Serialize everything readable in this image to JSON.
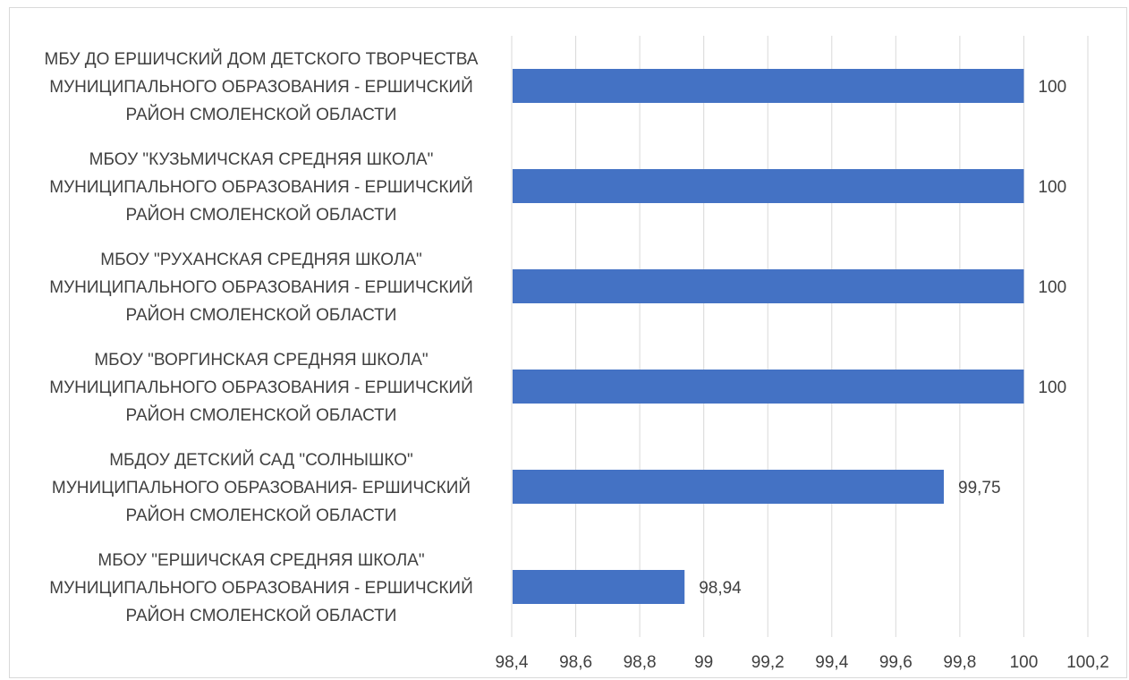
{
  "chart_data": {
    "type": "bar",
    "orientation": "horizontal",
    "categories": [
      [
        "МБУ ДО ЕРШИЧСКИЙ ДОМ ДЕТСКОГО ТВОРЧЕСТВА",
        "МУНИЦИПАЛЬНОГО ОБРАЗОВАНИЯ - ЕРШИЧСКИЙ",
        "РАЙОН СМОЛЕНСКОЙ ОБЛАСТИ"
      ],
      [
        "МБОУ \"КУЗЬМИЧСКАЯ СРЕДНЯЯ ШКОЛА\"",
        "МУНИЦИПАЛЬНОГО ОБРАЗОВАНИЯ - ЕРШИЧСКИЙ",
        "РАЙОН СМОЛЕНСКОЙ ОБЛАСТИ"
      ],
      [
        "МБОУ \"РУХАНСКАЯ СРЕДНЯЯ ШКОЛА\"",
        "МУНИЦИПАЛЬНОГО ОБРАЗОВАНИЯ - ЕРШИЧСКИЙ",
        "РАЙОН СМОЛЕНСКОЙ ОБЛАСТИ"
      ],
      [
        "МБОУ \"ВОРГИНСКАЯ СРЕДНЯЯ ШКОЛА\"",
        "МУНИЦИПАЛЬНОГО ОБРАЗОВАНИЯ - ЕРШИЧСКИЙ",
        "РАЙОН СМОЛЕНСКОЙ ОБЛАСТИ"
      ],
      [
        "МБДОУ ДЕТСКИЙ САД \"СОЛНЫШКО\"",
        "МУНИЦИПАЛЬНОГО ОБРАЗОВАНИЯ- ЕРШИЧСКИЙ",
        "РАЙОН СМОЛЕНСКОЙ ОБЛАСТИ"
      ],
      [
        "МБОУ \"ЕРШИЧСКАЯ СРЕДНЯЯ ШКОЛА\"",
        "МУНИЦИПАЛЬНОГО ОБРАЗОВАНИЯ - ЕРШИЧСКИЙ",
        "РАЙОН СМОЛЕНСКОЙ ОБЛАСТИ"
      ]
    ],
    "values": [
      100,
      100,
      100,
      100,
      99.75,
      98.94
    ],
    "value_labels": [
      "100",
      "100",
      "100",
      "100",
      "99,75",
      "98,94"
    ],
    "xlim": [
      98.4,
      100.2
    ],
    "x_ticks": [
      98.4,
      98.6,
      98.8,
      99,
      99.2,
      99.4,
      99.6,
      99.8,
      100,
      100.2
    ],
    "x_tick_labels": [
      "98,4",
      "98,6",
      "98,8",
      "99",
      "99,2",
      "99,4",
      "99,6",
      "99,8",
      "100",
      "100,2"
    ],
    "title": "",
    "xlabel": "",
    "ylabel": "",
    "grid": "vertical",
    "legend": "none",
    "colors": {
      "bar": "#4472c4",
      "grid": "#d9d9d9",
      "text": "#404040",
      "border": "#d9d9d9"
    }
  }
}
